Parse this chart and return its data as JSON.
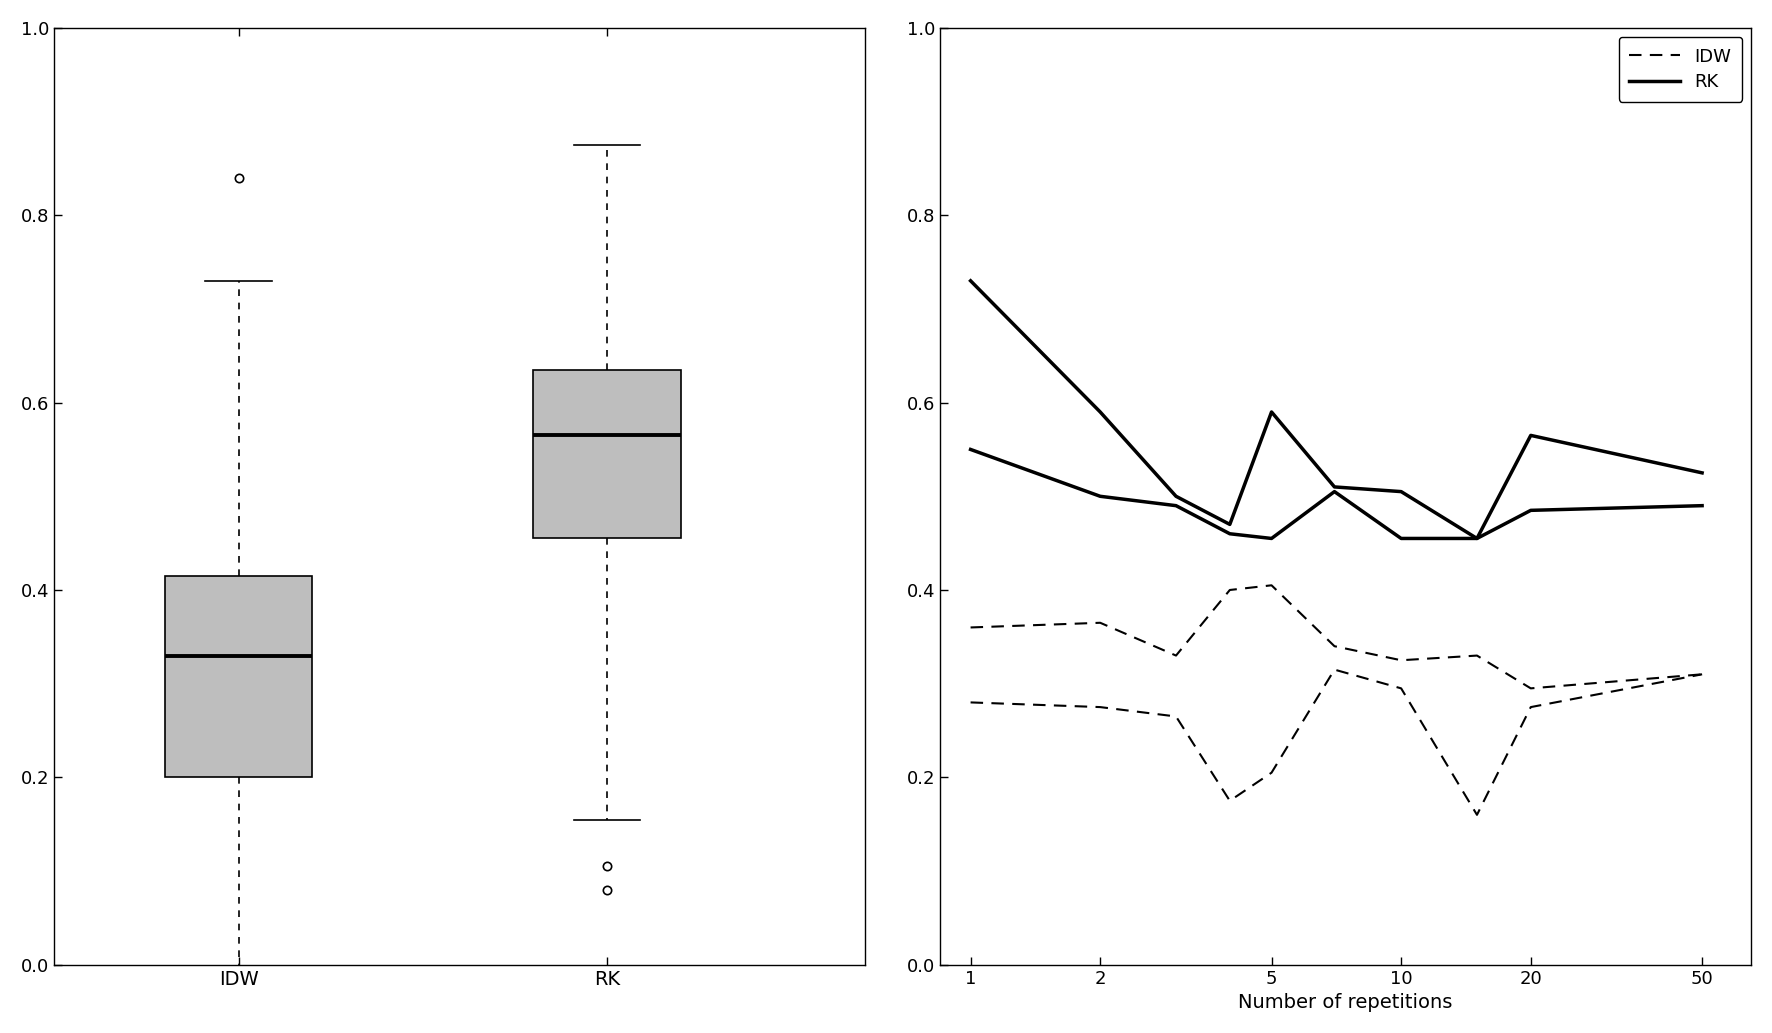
{
  "left_box": {
    "IDW": {
      "whisker_low": 0.0,
      "q1": 0.2,
      "median": 0.33,
      "q3": 0.415,
      "whisker_high": 0.73,
      "outliers": [
        0.84
      ]
    },
    "RK": {
      "whisker_low": 0.155,
      "q1": 0.455,
      "median": 0.565,
      "q3": 0.635,
      "whisker_high": 0.875,
      "outliers": [
        0.08,
        0.105
      ]
    }
  },
  "right_lines": {
    "x": [
      1,
      2,
      3,
      4,
      5,
      7,
      10,
      15,
      20,
      50
    ],
    "IDW_line1": [
      0.36,
      0.365,
      0.33,
      0.4,
      0.405,
      0.34,
      0.325,
      0.33,
      0.295,
      0.31
    ],
    "IDW_line2": [
      0.28,
      0.275,
      0.265,
      0.175,
      0.205,
      0.315,
      0.295,
      0.16,
      0.275,
      0.31
    ],
    "RK_line1": [
      0.73,
      0.59,
      0.5,
      0.47,
      0.59,
      0.51,
      0.505,
      0.455,
      0.565,
      0.525
    ],
    "RK_line2": [
      0.55,
      0.5,
      0.49,
      0.46,
      0.455,
      0.505,
      0.455,
      0.455,
      0.485,
      0.49
    ]
  },
  "box_facecolor": "#bebebe",
  "ylim": [
    0.0,
    1.0
  ],
  "yticks": [
    0.0,
    0.2,
    0.4,
    0.6,
    0.8,
    1.0
  ],
  "right_xticks": [
    1,
    2,
    5,
    10,
    20,
    50
  ],
  "right_xlabel": "Number of repetitions",
  "figsize": [
    17.72,
    10.33
  ],
  "dpi": 100
}
